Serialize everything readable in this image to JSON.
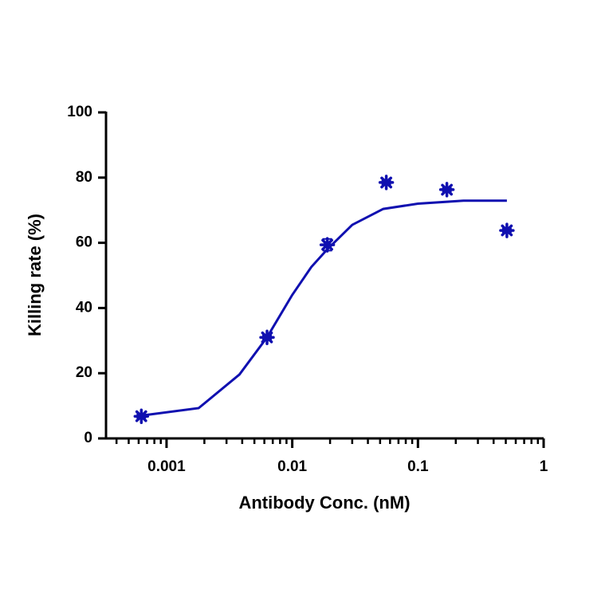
{
  "chart_data": {
    "type": "scatter",
    "x_label": "Antibody Conc. (nM)",
    "y_label": "Killing rate (%)",
    "color": "#1010b0",
    "xscale": "log",
    "xlim": [
      0.00033,
      1
    ],
    "xticks": [
      0.001,
      0.01,
      0.1,
      1
    ],
    "xminorticks": [
      0.0004,
      0.0005,
      0.0006,
      0.0007,
      0.0008,
      0.0009,
      0.002,
      0.003,
      0.004,
      0.005,
      0.006,
      0.007,
      0.008,
      0.009,
      0.02,
      0.03,
      0.04,
      0.05,
      0.06,
      0.07,
      0.08,
      0.09,
      0.2,
      0.3,
      0.4,
      0.5,
      0.6,
      0.7,
      0.8,
      0.9
    ],
    "ylim": [
      0,
      100
    ],
    "yticks": [
      0,
      20,
      40,
      60,
      80,
      100
    ],
    "points": {
      "x": [
        0.00063,
        0.0063,
        0.019,
        0.056,
        0.17,
        0.51
      ],
      "y": [
        6.8,
        31,
        59.4,
        78.5,
        76.3,
        63.8
      ],
      "errors": [
        0.5,
        0.6,
        1.8,
        0.5,
        0.5,
        0.5
      ]
    },
    "curve": {
      "x": [
        0.00063,
        0.0018,
        0.0038,
        0.0063,
        0.01,
        0.0142,
        0.019,
        0.03,
        0.053,
        0.1,
        0.23,
        0.51
      ],
      "y": [
        7,
        9.3,
        19.6,
        31,
        44,
        52.6,
        58,
        65.5,
        70.4,
        72,
        72.9,
        72.9
      ]
    }
  }
}
